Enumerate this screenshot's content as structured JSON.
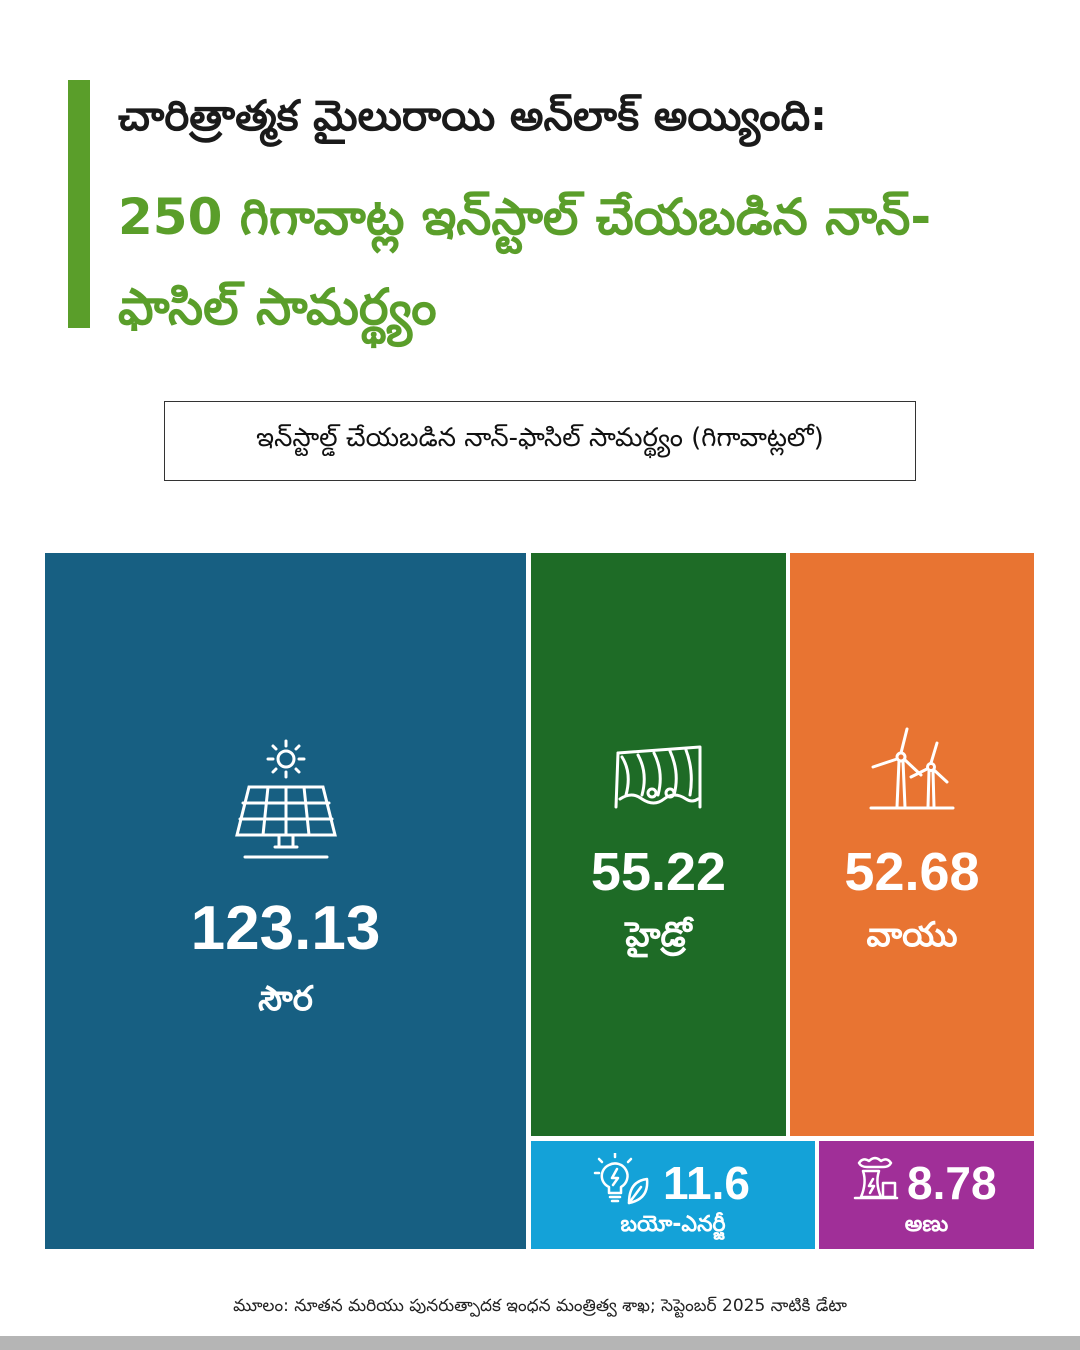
{
  "headline": {
    "line1": "చారిత్రాత్మక మైలురాయి అన్‌లాక్ అయ్యింది:",
    "line2": "250 గిగావాట్ల ఇన్‌స్టాల్ చేయబడిన నాన్-ఫాసిల్ సామర్థ్యం"
  },
  "colors": {
    "accent": "#5a9e2a",
    "solar": "#175f82",
    "hydro": "#1e6b26",
    "wind": "#e87432",
    "bio": "#14a2d8",
    "nuclear": "#a02f98"
  },
  "chart_data": {
    "type": "treemap",
    "title": "ఇన్‌స్టాల్డ్ చేయబడిన నాన్-ఫాసిల్ సామర్థ్యం (గిగావాట్లలో)",
    "categories": [
      "సౌర",
      "హైడ్రో",
      "వాయు",
      "బయో-ఎనర్జీ",
      "అణు"
    ],
    "values": [
      123.13,
      55.22,
      52.68,
      11.6,
      8.78
    ],
    "display_values": [
      "123.13",
      "55.22",
      "52.68",
      "11.6",
      "8.78"
    ],
    "icons": [
      "solar-panel-icon",
      "hydro-dam-icon",
      "wind-turbine-icon",
      "bulb-leaf-icon",
      "nuclear-plant-icon"
    ]
  },
  "footer": {
    "source": "మూలం: నూతన మరియు పునరుత్పాదక ఇంధన మంత్రిత్వ శాఖ; సెప్టెంబర్ 2025 నాటికి డేటా"
  }
}
